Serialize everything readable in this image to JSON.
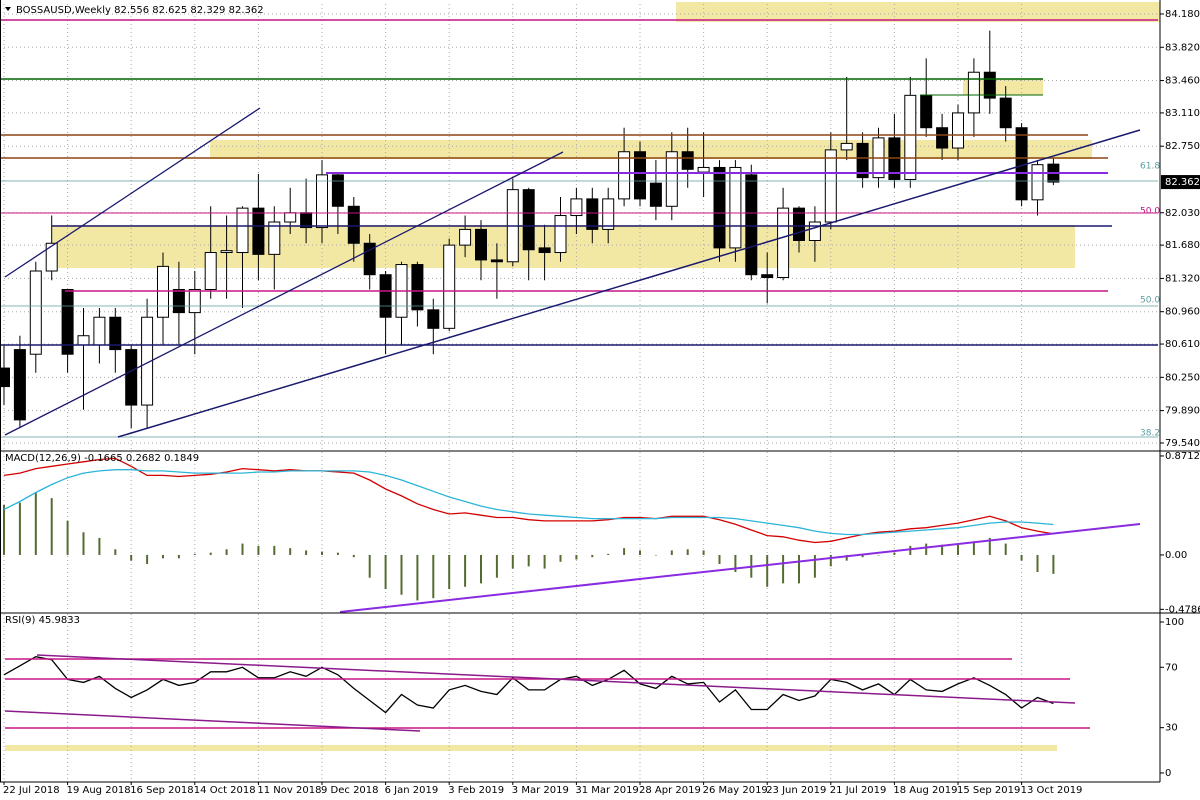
{
  "chart_data": [
    {
      "type": "candlestick",
      "title": "BOSSAUSD,Weekly  82.556 82.625 82.329 82.362",
      "categories": [
        "22 Jul 2018",
        null,
        null,
        null,
        "19 Aug 2018",
        null,
        null,
        null,
        "16 Sep 2018",
        null,
        null,
        null,
        "14 Oct 2018",
        null,
        null,
        null,
        "11 Nov 2018",
        null,
        null,
        null,
        "9 Dec 2018",
        null,
        null,
        null,
        "6 Jan 2019",
        null,
        null,
        null,
        "3 Feb 2019",
        null,
        null,
        null,
        "3 Mar 2019",
        null,
        null,
        null,
        "31 Mar 2019",
        null,
        null,
        null,
        "28 Apr 2019",
        null,
        null,
        null,
        "26 May 2019",
        null,
        null,
        null,
        "23 Jun 2019",
        null,
        null,
        null,
        "21 Jul 2019",
        null,
        null,
        null,
        "18 Aug 2019",
        null,
        null,
        null,
        "15 Sep 2019",
        null,
        null,
        null,
        "13 Oct 2019",
        null,
        null
      ],
      "open": [
        80.35,
        80.55,
        80.5,
        81.4,
        81.2,
        80.6,
        80.6,
        80.9,
        80.55,
        79.95,
        80.9,
        81.2,
        80.95,
        81.2,
        81.6,
        81.6,
        82.08,
        81.58,
        81.93,
        82.03,
        81.87,
        82.44,
        82.1,
        81.7,
        81.36,
        80.9,
        81.47,
        80.98,
        80.78,
        81.68,
        81.85,
        81.52,
        81.5,
        82.28,
        81.65,
        81.6,
        82.0,
        82.18,
        81.85,
        82.18,
        82.69,
        82.35,
        82.1,
        82.69,
        82.47,
        82.52,
        81.65,
        82.44,
        81.36,
        81.33,
        82.08,
        81.73,
        81.93,
        82.71,
        82.78,
        82.41,
        82.84,
        82.39,
        83.3,
        82.95,
        82.73,
        83.11,
        83.55,
        83.27,
        82.95,
        82.17,
        82.556
      ],
      "high": [
        80.6,
        80.7,
        81.5,
        82.0,
        81.2,
        81.0,
        81.0,
        81.0,
        80.6,
        81.1,
        81.6,
        81.5,
        81.4,
        82.1,
        82.0,
        82.1,
        82.45,
        82.1,
        82.3,
        82.4,
        82.6,
        82.45,
        82.2,
        81.8,
        81.4,
        81.5,
        81.5,
        81.1,
        81.75,
        82.0,
        81.95,
        81.7,
        82.4,
        82.3,
        81.9,
        82.2,
        82.3,
        82.3,
        82.3,
        82.95,
        82.8,
        82.6,
        82.9,
        82.95,
        82.9,
        82.6,
        82.6,
        82.55,
        81.6,
        82.3,
        82.1,
        82.1,
        82.9,
        83.5,
        82.9,
        82.95,
        83.1,
        83.5,
        83.7,
        83.1,
        83.2,
        83.7,
        84.0,
        83.4,
        83.0,
        82.6,
        82.625
      ],
      "low": [
        79.95,
        79.7,
        80.3,
        81.3,
        80.3,
        79.9,
        80.4,
        80.3,
        79.7,
        79.7,
        80.6,
        80.6,
        80.5,
        81.1,
        81.1,
        81.0,
        81.3,
        81.2,
        81.8,
        81.7,
        81.7,
        81.8,
        81.5,
        81.2,
        80.5,
        80.6,
        80.8,
        80.5,
        80.75,
        81.55,
        81.3,
        81.1,
        81.45,
        81.3,
        81.3,
        81.5,
        81.8,
        81.7,
        81.7,
        82.1,
        82.1,
        81.95,
        81.95,
        82.3,
        82.2,
        81.5,
        81.5,
        81.3,
        81.05,
        81.3,
        81.6,
        81.5,
        81.85,
        82.6,
        82.3,
        82.3,
        82.3,
        82.3,
        82.85,
        82.6,
        82.6,
        82.85,
        83.1,
        82.8,
        82.1,
        82.0,
        82.329
      ],
      "close": [
        80.15,
        79.79,
        81.4,
        81.7,
        80.5,
        80.7,
        80.9,
        80.55,
        79.95,
        80.9,
        81.45,
        80.95,
        81.2,
        81.6,
        81.62,
        82.08,
        81.58,
        81.93,
        82.03,
        81.87,
        82.44,
        82.1,
        81.7,
        81.36,
        80.9,
        81.47,
        80.98,
        80.78,
        81.68,
        81.85,
        81.52,
        81.5,
        82.28,
        81.63,
        81.6,
        82.0,
        82.18,
        81.85,
        82.18,
        82.69,
        82.18,
        82.1,
        82.69,
        82.5,
        82.52,
        81.65,
        82.52,
        81.36,
        81.33,
        82.08,
        81.73,
        81.93,
        82.71,
        82.78,
        82.41,
        82.84,
        82.39,
        83.3,
        82.95,
        82.73,
        83.11,
        83.55,
        83.27,
        82.95,
        82.17,
        82.55,
        82.362
      ],
      "up_color": "#ffffff",
      "down_color": "#000000",
      "ylim": [
        79.464,
        84.288
      ],
      "yticks": [
        {
          "value": 84.18,
          "label": "84.180"
        },
        {
          "value": 83.82,
          "label": "83.820"
        },
        {
          "value": 83.46,
          "label": "83.460"
        },
        {
          "value": 83.11,
          "label": "83.110"
        },
        {
          "value": 82.75,
          "label": "82.750"
        },
        {
          "value": 82.03,
          "label": "82.030"
        },
        {
          "value": 81.68,
          "label": "81.680"
        },
        {
          "value": 81.32,
          "label": "81.320"
        },
        {
          "value": 80.96,
          "label": "80.960"
        },
        {
          "value": 80.61,
          "label": "80.610"
        },
        {
          "value": 80.25,
          "label": "80.250"
        },
        {
          "value": 79.89,
          "label": "79.890"
        },
        {
          "value": 79.54,
          "label": "79.540"
        }
      ],
      "grid": true,
      "annotations": [
        "61.8",
        "50.0",
        "50.0",
        "38.2"
      ]
    },
    {
      "type": "combo",
      "title": "MACD(12,26,9) -0.1665 0.2682 0.1849",
      "series": [
        {
          "style": "bar",
          "color": "#556b2f",
          "values": [
            0.44,
            0.46,
            0.55,
            0.5,
            0.3,
            0.2,
            0.15,
            0.05,
            -0.05,
            -0.08,
            -0.03,
            -0.03,
            0.01,
            0.02,
            0.05,
            0.1,
            0.08,
            0.08,
            0.06,
            0.04,
            0.03,
            0.02,
            -0.02,
            -0.2,
            -0.3,
            -0.35,
            -0.4,
            -0.38,
            -0.3,
            -0.28,
            -0.25,
            -0.2,
            -0.12,
            -0.1,
            -0.12,
            -0.06,
            -0.04,
            -0.02,
            0.01,
            0.06,
            0.04,
            0.0,
            0.04,
            0.05,
            0.04,
            -0.08,
            -0.15,
            -0.2,
            -0.28,
            -0.25,
            -0.25,
            -0.2,
            -0.1,
            -0.05,
            -0.02,
            0.0,
            0.02,
            0.08,
            0.1,
            0.09,
            0.1,
            0.12,
            0.15,
            0.1,
            -0.05,
            -0.15,
            -0.1665
          ]
        },
        {
          "style": "line",
          "color": "#d40000",
          "values": [
            0.7,
            0.72,
            0.76,
            0.78,
            0.8,
            0.82,
            0.84,
            0.85,
            0.78,
            0.7,
            0.7,
            0.69,
            0.7,
            0.71,
            0.73,
            0.76,
            0.75,
            0.74,
            0.75,
            0.74,
            0.74,
            0.73,
            0.72,
            0.66,
            0.58,
            0.52,
            0.45,
            0.4,
            0.36,
            0.37,
            0.35,
            0.33,
            0.33,
            0.31,
            0.3,
            0.3,
            0.3,
            0.3,
            0.31,
            0.33,
            0.33,
            0.32,
            0.34,
            0.34,
            0.34,
            0.31,
            0.27,
            0.22,
            0.17,
            0.16,
            0.13,
            0.11,
            0.12,
            0.15,
            0.18,
            0.2,
            0.21,
            0.23,
            0.24,
            0.26,
            0.28,
            0.31,
            0.34,
            0.3,
            0.24,
            0.21,
            0.1849
          ]
        },
        {
          "style": "line",
          "color": "#2bb5d8",
          "values": [
            0.4,
            0.47,
            0.55,
            0.62,
            0.68,
            0.72,
            0.74,
            0.75,
            0.75,
            0.74,
            0.74,
            0.73,
            0.72,
            0.72,
            0.72,
            0.72,
            0.73,
            0.73,
            0.74,
            0.74,
            0.74,
            0.74,
            0.74,
            0.73,
            0.7,
            0.66,
            0.61,
            0.56,
            0.51,
            0.47,
            0.43,
            0.4,
            0.38,
            0.36,
            0.35,
            0.34,
            0.33,
            0.32,
            0.32,
            0.32,
            0.32,
            0.32,
            0.33,
            0.33,
            0.33,
            0.33,
            0.32,
            0.3,
            0.28,
            0.26,
            0.24,
            0.21,
            0.19,
            0.18,
            0.18,
            0.19,
            0.2,
            0.21,
            0.22,
            0.23,
            0.24,
            0.26,
            0.28,
            0.29,
            0.29,
            0.28,
            0.2682
          ]
        }
      ],
      "ylim": [
        -0.502,
        0.906
      ],
      "yticks": [
        0.8712,
        {
          "value": 0,
          "label": "0.00"
        },
        -0.4786
      ],
      "grid": false
    },
    {
      "type": "line",
      "title": "RSI(9) 45.9833",
      "series": [
        {
          "color": "#000000",
          "values": [
            65,
            71,
            77,
            75,
            62,
            60,
            64,
            56,
            50,
            55,
            62,
            58,
            60,
            67,
            67,
            70,
            63,
            63,
            67,
            64,
            70,
            65,
            56,
            48,
            40,
            52,
            45,
            43,
            55,
            58,
            54,
            52,
            63,
            55,
            55,
            62,
            64,
            58,
            62,
            68,
            59,
            56,
            64,
            59,
            60,
            47,
            55,
            42,
            42,
            52,
            48,
            51,
            62,
            60,
            55,
            59,
            52,
            62,
            55,
            54,
            59,
            63,
            58,
            52,
            43,
            50,
            45.9833
          ]
        }
      ],
      "ylim": [
        -6,
        105.3
      ],
      "yticks": [
        100,
        70,
        30,
        0
      ],
      "grid": false
    }
  ]
}
